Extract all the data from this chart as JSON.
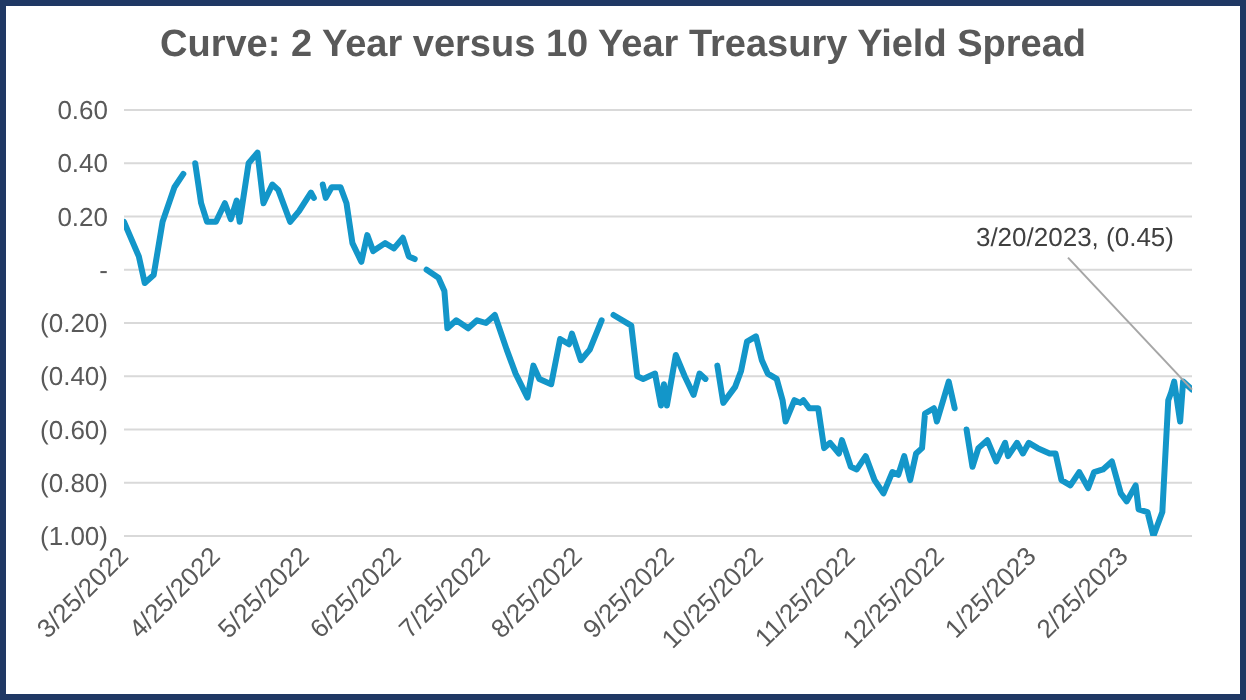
{
  "chart_data": {
    "type": "line",
    "title": "Curve: 2 Year versus 10 Year Treasury Yield Spread",
    "x": [
      "2022-03-25",
      "2022-03-30",
      "2022-04-01",
      "2022-04-04",
      "2022-04-07",
      "2022-04-11",
      "2022-04-14",
      "2022-04-16",
      "2022-04-18",
      "2022-04-20",
      "2022-04-22",
      "2022-04-25",
      "2022-04-28",
      "2022-04-30",
      "2022-05-02",
      "2022-05-03",
      "2022-05-06",
      "2022-05-09",
      "2022-05-11",
      "2022-05-14",
      "2022-05-16",
      "2022-05-20",
      "2022-05-23",
      "2022-05-27",
      "2022-05-28",
      "2022-05-30",
      "2022-05-31",
      "2022-06-01",
      "2022-06-03",
      "2022-06-06",
      "2022-06-08",
      "2022-06-10",
      "2022-06-13",
      "2022-06-15",
      "2022-06-17",
      "2022-06-21",
      "2022-06-24",
      "2022-06-27",
      "2022-06-29",
      "2022-07-01",
      "2022-07-03",
      "2022-07-05",
      "2022-07-09",
      "2022-07-11",
      "2022-07-12",
      "2022-07-15",
      "2022-07-19",
      "2022-07-22",
      "2022-07-25",
      "2022-07-28",
      "2022-08-01",
      "2022-08-04",
      "2022-08-08",
      "2022-08-10",
      "2022-08-12",
      "2022-08-16",
      "2022-08-19",
      "2022-08-22",
      "2022-08-23",
      "2022-08-26",
      "2022-08-29",
      "2022-09-02",
      "2022-09-04",
      "2022-09-06",
      "2022-09-12",
      "2022-09-14",
      "2022-09-16",
      "2022-09-20",
      "2022-09-22",
      "2022-09-23",
      "2022-09-24",
      "2022-09-27",
      "2022-09-30",
      "2022-10-03",
      "2022-10-05",
      "2022-10-07",
      "2022-10-09",
      "2022-10-11",
      "2022-10-13",
      "2022-10-17",
      "2022-10-19",
      "2022-10-21",
      "2022-10-24",
      "2022-10-26",
      "2022-10-28",
      "2022-10-31",
      "2022-11-02",
      "2022-11-03",
      "2022-11-06",
      "2022-11-08",
      "2022-11-09",
      "2022-11-11",
      "2022-11-14",
      "2022-11-16",
      "2022-11-18",
      "2022-11-21",
      "2022-11-22",
      "2022-11-25",
      "2022-11-27",
      "2022-11-30",
      "2022-12-03",
      "2022-12-06",
      "2022-12-09",
      "2022-12-11",
      "2022-12-13",
      "2022-12-15",
      "2022-12-17",
      "2022-12-19",
      "2022-12-20",
      "2022-12-23",
      "2022-12-24",
      "2022-12-28",
      "2022-12-30",
      "2023-01-01",
      "2023-01-03",
      "2023-01-05",
      "2023-01-07",
      "2023-01-10",
      "2023-01-13",
      "2023-01-16",
      "2023-01-17",
      "2023-01-20",
      "2023-01-22",
      "2023-01-24",
      "2023-01-27",
      "2023-01-31",
      "2023-02-02",
      "2023-02-04",
      "2023-02-07",
      "2023-02-10",
      "2023-02-13",
      "2023-02-15",
      "2023-02-18",
      "2023-02-21",
      "2023-02-24",
      "2023-02-26",
      "2023-03-01",
      "2023-03-02",
      "2023-03-05",
      "2023-03-07",
      "2023-03-10",
      "2023-03-12",
      "2023-03-13",
      "2023-03-14",
      "2023-03-16",
      "2023-03-17",
      "2023-03-20"
    ],
    "series": [
      {
        "color": "#1396c9",
        "values": [
          0.18,
          0.05,
          -0.05,
          -0.02,
          0.18,
          0.31,
          0.36,
          null,
          0.4,
          0.25,
          0.18,
          0.18,
          0.25,
          0.19,
          0.26,
          0.18,
          0.4,
          0.44,
          0.25,
          0.32,
          0.3,
          0.18,
          0.22,
          0.29,
          0.27,
          null,
          0.32,
          0.27,
          0.31,
          0.31,
          0.25,
          0.1,
          0.03,
          0.13,
          0.07,
          0.1,
          0.08,
          0.12,
          0.05,
          0.04,
          null,
          0.0,
          -0.03,
          -0.08,
          -0.22,
          -0.19,
          -0.22,
          -0.19,
          -0.2,
          -0.17,
          -0.3,
          -0.39,
          -0.48,
          -0.36,
          -0.41,
          -0.43,
          -0.26,
          -0.28,
          -0.24,
          -0.34,
          -0.3,
          -0.19,
          null,
          -0.17,
          -0.21,
          -0.4,
          -0.41,
          -0.39,
          -0.51,
          -0.43,
          -0.51,
          -0.32,
          -0.4,
          -0.47,
          -0.39,
          -0.41,
          null,
          -0.36,
          -0.5,
          -0.44,
          -0.38,
          -0.27,
          -0.25,
          -0.34,
          -0.39,
          -0.41,
          -0.49,
          -0.57,
          -0.49,
          -0.5,
          -0.49,
          -0.52,
          -0.52,
          -0.67,
          -0.65,
          -0.69,
          -0.64,
          -0.74,
          -0.75,
          -0.7,
          -0.79,
          -0.84,
          -0.76,
          -0.77,
          -0.7,
          -0.79,
          -0.69,
          -0.67,
          -0.54,
          -0.52,
          -0.57,
          -0.42,
          -0.52,
          null,
          -0.6,
          -0.74,
          -0.67,
          -0.64,
          -0.72,
          -0.65,
          -0.7,
          -0.65,
          -0.69,
          -0.65,
          -0.67,
          -0.69,
          -0.69,
          -0.79,
          -0.81,
          -0.76,
          -0.82,
          -0.76,
          -0.75,
          -0.72,
          -0.84,
          -0.87,
          -0.81,
          -0.9,
          -0.91,
          -1.0,
          -0.91,
          -0.49,
          -0.46,
          -0.42,
          -0.57,
          -0.42,
          -0.45
        ]
      }
    ],
    "xlim": [
      "2022-03-25",
      "2023-03-20"
    ],
    "xticks": [
      {
        "value": "2022-03-25",
        "label": "3/25/2022"
      },
      {
        "value": "2022-04-25",
        "label": "4/25/2022"
      },
      {
        "value": "2022-05-25",
        "label": "5/25/2022"
      },
      {
        "value": "2022-06-25",
        "label": "6/25/2022"
      },
      {
        "value": "2022-07-25",
        "label": "7/25/2022"
      },
      {
        "value": "2022-08-25",
        "label": "8/25/2022"
      },
      {
        "value": "2022-09-25",
        "label": "9/25/2022"
      },
      {
        "value": "2022-10-25",
        "label": "10/25/2022"
      },
      {
        "value": "2022-11-25",
        "label": "11/25/2022"
      },
      {
        "value": "2022-12-25",
        "label": "12/25/2022"
      },
      {
        "value": "2023-01-25",
        "label": "1/25/2023"
      },
      {
        "value": "2023-02-25",
        "label": "2/25/2023"
      }
    ],
    "ylim": [
      -1.0,
      0.6
    ],
    "yticks": [
      {
        "value": -1.0,
        "label": "(1.00)"
      },
      {
        "value": -0.8,
        "label": "(0.80)"
      },
      {
        "value": -0.6,
        "label": "(0.60)"
      },
      {
        "value": -0.4,
        "label": "(0.40)"
      },
      {
        "value": -0.2,
        "label": "(0.20)"
      },
      {
        "value": 0,
        "label": "-"
      },
      {
        "value": 0.2,
        "label": "0.20"
      },
      {
        "value": 0.4,
        "label": "0.40"
      },
      {
        "value": 0.6,
        "label": "0.60"
      }
    ],
    "grid": "y",
    "marker": "none",
    "line_style": "solid",
    "annotations": [
      {
        "text": "3/20/2023,  (0.45)",
        "x": "2023-03-20",
        "y": -0.45
      }
    ]
  }
}
